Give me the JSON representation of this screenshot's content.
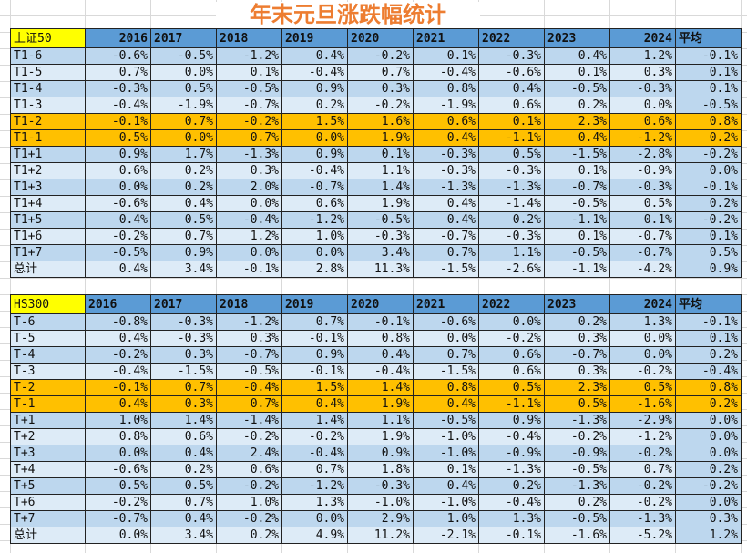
{
  "title": "年末元旦涨跌幅统计",
  "colors": {
    "header": "#5b9bd5",
    "row_dark": "#bdd7ee",
    "row_light": "#ddebf7",
    "highlight": "#ffc000",
    "corner": "#ffff00",
    "title": "#ed7d31"
  },
  "tables": [
    {
      "corner": "上证50",
      "columns": [
        "2016",
        "2017",
        "2018",
        "2019",
        "2020",
        "2021",
        "2022",
        "2023",
        "2024",
        "平均"
      ],
      "rows": [
        {
          "label": "T1-6",
          "values": [
            "-0.6%",
            "-0.5%",
            "-1.2%",
            "0.4%",
            "-0.2%",
            "0.1%",
            "-0.3%",
            "0.4%",
            "1.2%",
            "-0.1%"
          ]
        },
        {
          "label": "T1-5",
          "values": [
            "0.7%",
            "0.0%",
            "0.1%",
            "-0.4%",
            "0.7%",
            "-0.4%",
            "-0.6%",
            "0.1%",
            "0.3%",
            "0.1%"
          ]
        },
        {
          "label": "T1-4",
          "values": [
            "-0.3%",
            "0.5%",
            "-0.5%",
            "0.9%",
            "0.3%",
            "0.8%",
            "0.4%",
            "-0.5%",
            "-0.3%",
            "0.1%"
          ]
        },
        {
          "label": "T1-3",
          "values": [
            "-0.4%",
            "-1.9%",
            "-0.7%",
            "0.2%",
            "-0.2%",
            "-1.9%",
            "0.6%",
            "0.2%",
            "0.0%",
            "-0.5%"
          ]
        },
        {
          "label": "T1-2",
          "highlight": true,
          "values": [
            "-0.1%",
            "0.7%",
            "-0.2%",
            "1.5%",
            "1.6%",
            "0.6%",
            "0.1%",
            "2.3%",
            "0.6%",
            "0.8%"
          ]
        },
        {
          "label": "T1-1",
          "highlight": true,
          "values": [
            "0.5%",
            "0.0%",
            "0.7%",
            "0.0%",
            "1.9%",
            "0.4%",
            "-1.1%",
            "0.4%",
            "-1.2%",
            "0.2%"
          ]
        },
        {
          "label": "T1+1",
          "values": [
            "0.9%",
            "1.7%",
            "-1.3%",
            "0.9%",
            "0.1%",
            "-0.3%",
            "0.5%",
            "-1.5%",
            "-2.8%",
            "-0.2%"
          ]
        },
        {
          "label": "T1+2",
          "values": [
            "0.6%",
            "0.2%",
            "0.3%",
            "-0.4%",
            "1.1%",
            "-0.3%",
            "-0.3%",
            "0.1%",
            "-0.9%",
            "0.0%"
          ]
        },
        {
          "label": "T1+3",
          "values": [
            "0.0%",
            "0.2%",
            "2.0%",
            "-0.7%",
            "1.4%",
            "-1.3%",
            "-1.3%",
            "-0.7%",
            "-0.3%",
            "-0.1%"
          ]
        },
        {
          "label": "T1+4",
          "values": [
            "-0.6%",
            "0.4%",
            "0.0%",
            "0.6%",
            "1.9%",
            "0.4%",
            "-1.4%",
            "-0.5%",
            "0.5%",
            "0.2%"
          ]
        },
        {
          "label": "T1+5",
          "values": [
            "0.4%",
            "0.5%",
            "-0.4%",
            "-1.2%",
            "-0.5%",
            "0.4%",
            "0.2%",
            "-1.1%",
            "0.1%",
            "-0.2%"
          ]
        },
        {
          "label": "T1+6",
          "values": [
            "-0.2%",
            "0.7%",
            "1.2%",
            "1.0%",
            "-0.3%",
            "-0.7%",
            "-0.3%",
            "0.1%",
            "-0.7%",
            "0.1%"
          ]
        },
        {
          "label": "T1+7",
          "values": [
            "-0.5%",
            "0.9%",
            "0.0%",
            "0.0%",
            "3.4%",
            "0.7%",
            "1.1%",
            "-0.5%",
            "-0.7%",
            "0.5%"
          ]
        },
        {
          "label": "总计",
          "values": [
            "0.4%",
            "3.4%",
            "-0.1%",
            "2.8%",
            "11.3%",
            "-1.5%",
            "-2.6%",
            "-1.1%",
            "-4.2%",
            "0.9%"
          ]
        }
      ]
    },
    {
      "corner": "HS300",
      "columns": [
        "2016",
        "2017",
        "2018",
        "2019",
        "2020",
        "2021",
        "2022",
        "2023",
        "2024",
        "平均"
      ],
      "rows": [
        {
          "label": "T-6",
          "values": [
            "-0.8%",
            "-0.3%",
            "-1.2%",
            "0.7%",
            "-0.1%",
            "-0.6%",
            "0.0%",
            "0.2%",
            "1.3%",
            "-0.1%"
          ]
        },
        {
          "label": "T-5",
          "values": [
            "0.4%",
            "-0.3%",
            "0.3%",
            "-0.1%",
            "0.8%",
            "0.0%",
            "-0.2%",
            "0.3%",
            "0.0%",
            "0.1%"
          ]
        },
        {
          "label": "T-4",
          "values": [
            "-0.2%",
            "0.3%",
            "-0.7%",
            "0.9%",
            "0.4%",
            "0.7%",
            "0.6%",
            "-0.7%",
            "0.0%",
            "0.2%"
          ]
        },
        {
          "label": "T-3",
          "values": [
            "-0.4%",
            "-1.5%",
            "-0.5%",
            "-0.1%",
            "-0.4%",
            "-1.5%",
            "0.6%",
            "0.3%",
            "-0.2%",
            "-0.4%"
          ]
        },
        {
          "label": "T-2",
          "highlight": true,
          "values": [
            "-0.1%",
            "0.7%",
            "-0.4%",
            "1.5%",
            "1.4%",
            "0.8%",
            "0.5%",
            "2.3%",
            "0.5%",
            "0.8%"
          ]
        },
        {
          "label": "T-1",
          "highlight": true,
          "values": [
            "0.4%",
            "0.3%",
            "0.7%",
            "0.4%",
            "1.9%",
            "0.4%",
            "-1.1%",
            "0.5%",
            "-1.6%",
            "0.2%"
          ]
        },
        {
          "label": "T+1",
          "values": [
            "1.0%",
            "1.4%",
            "-1.4%",
            "1.4%",
            "1.1%",
            "-0.5%",
            "0.9%",
            "-1.3%",
            "-2.9%",
            "0.0%"
          ]
        },
        {
          "label": "T+2",
          "values": [
            "0.8%",
            "0.6%",
            "-0.2%",
            "-0.2%",
            "1.9%",
            "-1.0%",
            "-0.4%",
            "-0.2%",
            "-1.2%",
            "0.0%"
          ]
        },
        {
          "label": "T+3",
          "values": [
            "0.0%",
            "0.4%",
            "2.4%",
            "-0.4%",
            "0.9%",
            "-1.0%",
            "-0.9%",
            "-0.9%",
            "-0.2%",
            "0.0%"
          ]
        },
        {
          "label": "T+4",
          "values": [
            "-0.6%",
            "0.2%",
            "0.6%",
            "0.7%",
            "1.8%",
            "0.1%",
            "-1.3%",
            "-0.5%",
            "0.7%",
            "0.2%"
          ]
        },
        {
          "label": "T+5",
          "values": [
            "0.5%",
            "0.5%",
            "-0.2%",
            "-1.2%",
            "-0.3%",
            "0.4%",
            "0.2%",
            "-1.3%",
            "-0.2%",
            "-0.2%"
          ]
        },
        {
          "label": "T+6",
          "values": [
            "-0.2%",
            "0.7%",
            "1.0%",
            "1.3%",
            "-1.0%",
            "-1.0%",
            "-0.4%",
            "0.2%",
            "-0.2%",
            "0.0%"
          ]
        },
        {
          "label": "T+7",
          "values": [
            "-0.7%",
            "0.4%",
            "-0.2%",
            "0.0%",
            "2.9%",
            "1.0%",
            "1.3%",
            "-0.5%",
            "-1.3%",
            "0.3%"
          ]
        },
        {
          "label": "总计",
          "values": [
            "0.0%",
            "3.4%",
            "0.2%",
            "4.9%",
            "11.2%",
            "-2.1%",
            "-0.1%",
            "-1.6%",
            "-5.2%",
            "1.2%"
          ]
        }
      ]
    }
  ]
}
